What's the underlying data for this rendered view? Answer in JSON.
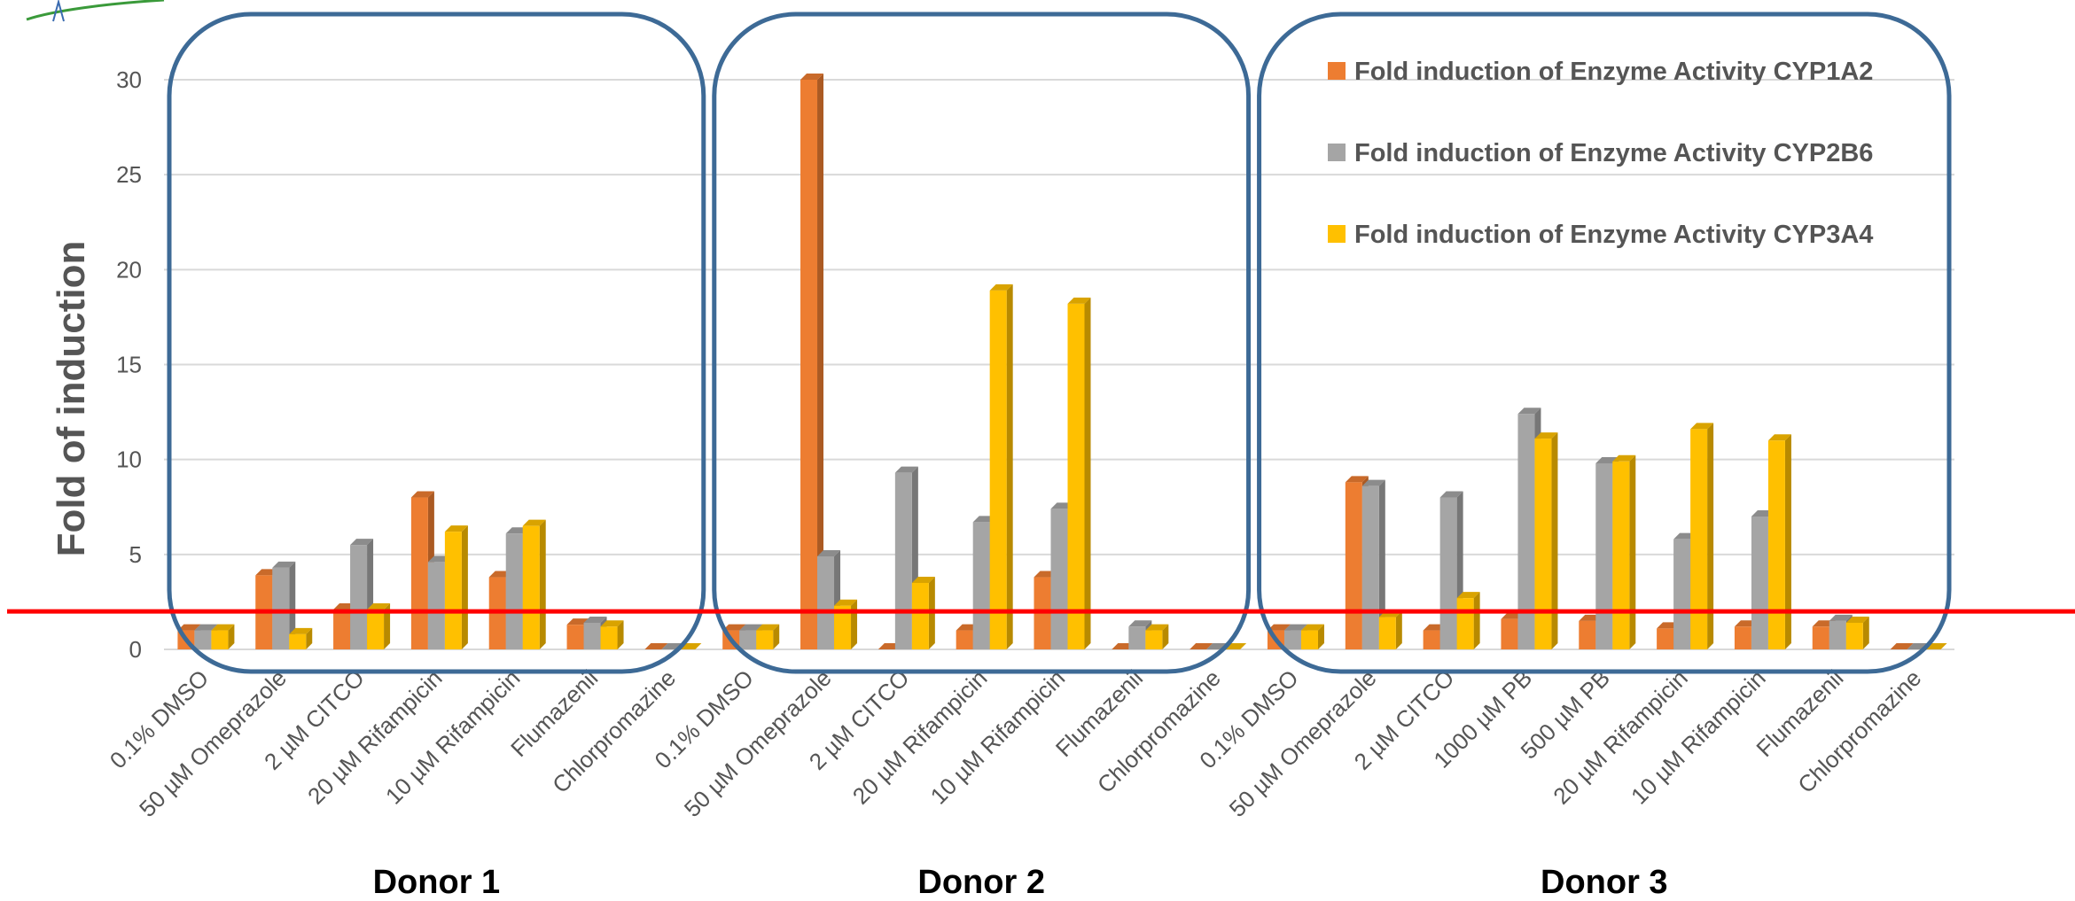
{
  "chart_data": {
    "type": "bar",
    "ylabel": "Fold of induction",
    "ylim": [
      0,
      30
    ],
    "yticks": [
      0,
      5,
      10,
      15,
      20,
      25,
      30
    ],
    "grid": true,
    "legend_position": "top-right",
    "threshold_line": {
      "value": 2,
      "color": "#ff0000"
    },
    "series": [
      {
        "name": "Fold induction of Enzyme Activity CYP1A2",
        "color": "#ED7D31"
      },
      {
        "name": "Fold induction of Enzyme Activity CYP2B6",
        "color": "#A5A5A5"
      },
      {
        "name": "Fold induction of Enzyme Activity CYP3A4",
        "color": "#FFC000"
      }
    ],
    "groups": [
      {
        "label": "Donor 1",
        "categories": [
          "0.1% DMSO",
          "50 µM Omeprazole",
          "2 µM CITCO",
          "20 µM Rifampicin",
          "10 µM Rifampicin",
          "Flumazenil",
          "Chlorpromazine"
        ],
        "values": [
          [
            1.0,
            3.9,
            2.1,
            8.0,
            3.8,
            1.3,
            0.0
          ],
          [
            1.0,
            4.3,
            5.5,
            4.6,
            6.1,
            1.4,
            0.0
          ],
          [
            1.0,
            0.8,
            2.1,
            6.2,
            6.5,
            1.2,
            0.0
          ]
        ]
      },
      {
        "label": "Donor 2",
        "categories": [
          "0.1% DMSO",
          "50 µM Omeprazole",
          "2 µM CITCO",
          "20 µM Rifampicin",
          "10 µM Rifampicin",
          "Flumazenil",
          "Chlorpromazine"
        ],
        "values": [
          [
            1.0,
            30.0,
            0.0,
            1.0,
            3.8,
            0.0,
            0.0
          ],
          [
            1.0,
            4.9,
            9.3,
            6.7,
            7.4,
            1.2,
            0.0
          ],
          [
            1.0,
            2.3,
            3.5,
            18.9,
            18.2,
            1.0,
            0.0
          ]
        ]
      },
      {
        "label": "Donor 3",
        "categories": [
          "0.1% DMSO",
          "50 µM Omeprazole",
          "2 µM CITCO",
          "1000 µM PB",
          "500 µM PB",
          "20 µM Rifampicin",
          "10 µM Rifampicin",
          "Flumazenil",
          "Chlorpromazine"
        ],
        "values": [
          [
            1.0,
            8.8,
            1.0,
            1.6,
            1.5,
            1.1,
            1.2,
            1.2,
            0.0
          ],
          [
            1.0,
            8.6,
            8.0,
            12.4,
            9.8,
            5.8,
            7.0,
            1.5,
            0.0
          ],
          [
            1.0,
            1.7,
            2.7,
            11.1,
            9.9,
            11.6,
            11.0,
            1.4,
            0.0
          ]
        ]
      }
    ]
  }
}
